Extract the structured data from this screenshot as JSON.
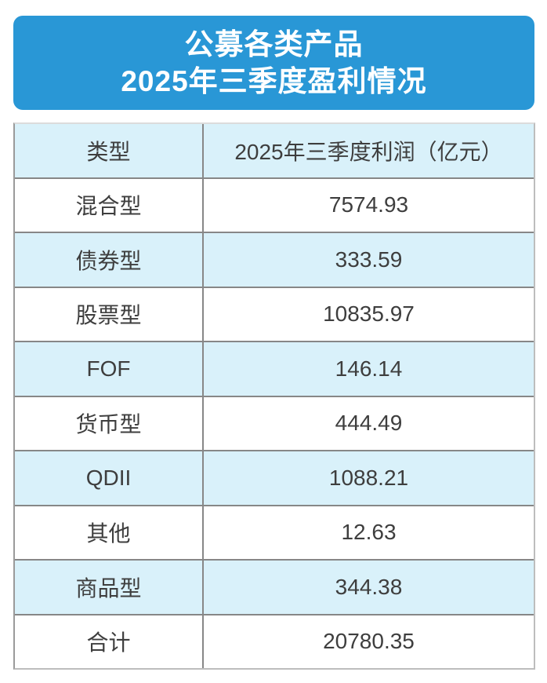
{
  "header": {
    "title_line1": "公募各类产品",
    "title_line2": "2025年三季度盈利情况",
    "background_color": "#2997d6",
    "text_color": "#ffffff"
  },
  "table": {
    "columns": [
      "类型",
      "2025年三季度利润（亿元）"
    ],
    "rows": [
      {
        "type": "混合型",
        "profit": "7574.93"
      },
      {
        "type": "债券型",
        "profit": "333.59"
      },
      {
        "type": "股票型",
        "profit": "10835.97"
      },
      {
        "type": "FOF",
        "profit": "146.14"
      },
      {
        "type": "货币型",
        "profit": "444.49"
      },
      {
        "type": "QDII",
        "profit": "1088.21"
      },
      {
        "type": "其他",
        "profit": "12.63"
      },
      {
        "type": "商品型",
        "profit": "344.38"
      },
      {
        "type": "合计",
        "profit": "20780.35"
      }
    ],
    "colors": {
      "header_row_bg": "#d9f1fa",
      "alt_row_bg": "#d9f1fa",
      "row_bg": "#ffffff",
      "grid_line": "#878787",
      "outer_border": "#bdbdbd",
      "text": "#3e3e3e"
    }
  },
  "chart_data": {
    "type": "table",
    "title": "公募各类产品2025年三季度盈利情况",
    "columns": [
      "类型",
      "2025年三季度利润（亿元）"
    ],
    "categories": [
      "混合型",
      "债券型",
      "股票型",
      "FOF",
      "货币型",
      "QDII",
      "其他",
      "商品型",
      "合计"
    ],
    "values": [
      7574.93,
      333.59,
      10835.97,
      146.14,
      444.49,
      1088.21,
      12.63,
      344.38,
      20780.35
    ]
  }
}
